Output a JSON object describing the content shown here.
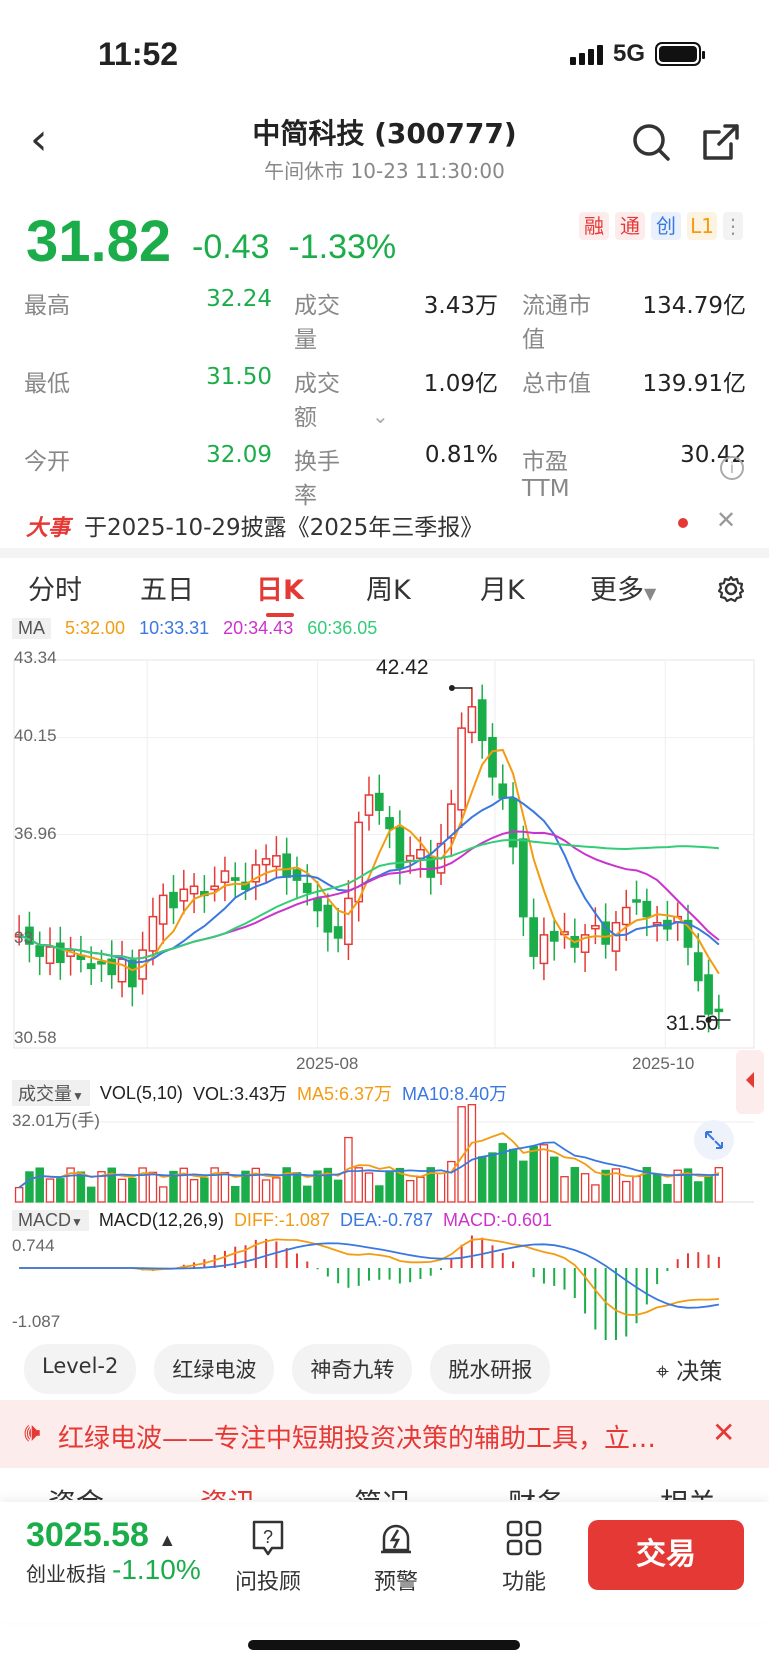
{
  "status": {
    "time": "11:52",
    "network": "5G"
  },
  "nav": {
    "title": "中简科技 (300777)",
    "subtitle": "午间休市  10-23  11:30:00"
  },
  "quote": {
    "price": "31.82",
    "change": "-0.43",
    "change_pct": "-1.33%",
    "badges": [
      "融",
      "通",
      "创",
      "L1"
    ]
  },
  "stats": [
    [
      "最高",
      "32.24",
      "成交量",
      "3.43万",
      "流通市值",
      "134.79亿"
    ],
    [
      "最低",
      "31.50",
      "成交额",
      "1.09亿",
      "总市值",
      "139.91亿"
    ],
    [
      "今开",
      "32.09",
      "换手率",
      "0.81%",
      "市盈TTM",
      "30.42"
    ]
  ],
  "event": {
    "logo": "大事",
    "text": "于2025-10-29披露《2025年三季报》"
  },
  "tabs": [
    "分时",
    "五日",
    "日K",
    "周K",
    "月K",
    "更多"
  ],
  "active_tab": "日K",
  "ma": {
    "label": "MA",
    "ma5": "5:32.00",
    "ma10": "10:33.31",
    "ma20": "20:34.43",
    "ma60": "60:36.05"
  },
  "chart_axes": {
    "y_labels": [
      "43.34",
      "40.15",
      "36.96",
      "33",
      "30.58"
    ],
    "x_labels": [
      "2025-08",
      "2025-10"
    ],
    "high_label": "42.42",
    "low_label": "31.50"
  },
  "volume": {
    "tag": "成交量",
    "vol_desc": "VOL(5,10)",
    "vol_val": "VOL:3.43万",
    "ma5": "MA5:6.37万",
    "ma10": "MA10:8.40万",
    "max_label": "32.01万(手)"
  },
  "macd": {
    "tag": "MACD",
    "desc": "MACD(12,26,9)",
    "diff": "DIFF:-1.087",
    "dea": "DEA:-0.787",
    "macd": "MACD:-0.601",
    "top_label": "0.744",
    "bottom_label": "-1.087"
  },
  "tools": [
    "Level-2",
    "红绿电波",
    "神奇九转",
    "脱水研报"
  ],
  "decision": "决策",
  "promo": "红绿电波——专注中短期投资决策的辅助工具，立即体验",
  "peek_tabs": [
    "资金",
    "资讯",
    "简况",
    "财务",
    "相关"
  ],
  "index": {
    "value": "3025.58",
    "name": "创业板指",
    "change": "-1.10%"
  },
  "bottom_buttons": [
    "问投顾",
    "预警",
    "功能"
  ],
  "trade": "交易",
  "colors": {
    "up": "#e53935",
    "down": "#1aad4a",
    "ma5": "#f39c12",
    "ma10": "#3a78e0",
    "ma20": "#cc33cc",
    "ma60": "#33cc77"
  },
  "chart_data": {
    "type": "candlestick",
    "y_range": [
      30.58,
      43.34
    ],
    "candles_close": [
      34.3,
      34.0,
      33.6,
      33.9,
      33.4,
      33.8,
      33.5,
      33.2,
      33.4,
      33.0,
      33.5,
      32.6,
      33.8,
      34.9,
      35.6,
      35.2,
      35.8,
      35.9,
      35.6,
      35.9,
      36.4,
      36.1,
      35.8,
      36.6,
      36.8,
      36.9,
      36.2,
      36.1,
      35.7,
      35.1,
      34.4,
      34.2,
      35.5,
      38.0,
      38.9,
      38.4,
      37.8,
      36.5,
      36.9,
      37.1,
      36.2,
      37.3,
      38.6,
      41.1,
      41.8,
      40.7,
      39.5,
      38.8,
      37.2,
      34.9,
      33.6,
      34.3,
      34.1,
      34.4,
      33.9,
      34.3,
      34.6,
      34.0,
      34.7,
      35.2,
      35.4,
      34.9,
      34.7,
      34.5,
      34.9,
      33.9,
      32.8,
      31.7,
      31.82
    ]
  }
}
